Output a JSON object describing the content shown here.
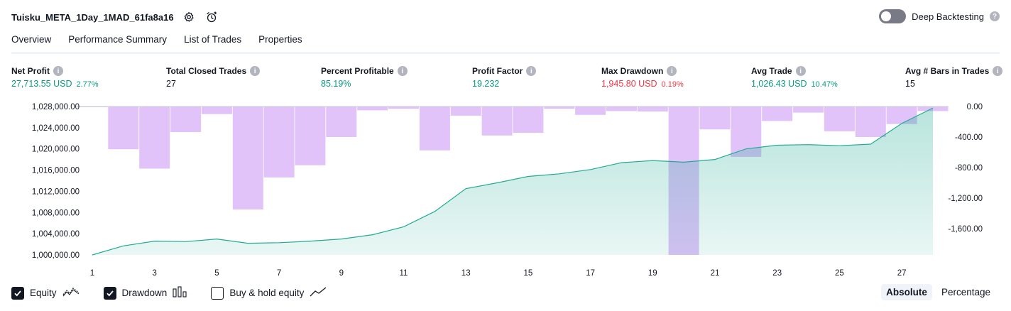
{
  "header": {
    "title": "Tuisku_META_1Day_1MAD_61fa8a16",
    "settings_icon": "gear-icon",
    "alert_icon": "add-alert-clock-icon",
    "deep_backtesting_label": "Deep Backtesting",
    "deep_backtesting_enabled": false
  },
  "tabs": [
    {
      "label": "Overview",
      "active": true
    },
    {
      "label": "Performance Summary",
      "active": false
    },
    {
      "label": "List of Trades",
      "active": false
    },
    {
      "label": "Properties",
      "active": false
    }
  ],
  "metrics": [
    {
      "label": "Net Profit",
      "value": "27,713.55 USD",
      "pct": "2.77%",
      "tone": "pos"
    },
    {
      "label": "Total Closed Trades",
      "value": "27",
      "pct": "",
      "tone": "neutral"
    },
    {
      "label": "Percent Profitable",
      "value": "85.19%",
      "pct": "",
      "tone": "pos"
    },
    {
      "label": "Profit Factor",
      "value": "19.232",
      "pct": "",
      "tone": "pos"
    },
    {
      "label": "Max Drawdown",
      "value": "1,945.80 USD",
      "pct": "0.19%",
      "tone": "neg"
    },
    {
      "label": "Avg Trade",
      "value": "1,026.43 USD",
      "pct": "10.47%",
      "tone": "pos"
    },
    {
      "label": "Avg # Bars in Trades",
      "value": "15",
      "pct": "",
      "tone": "neutral"
    }
  ],
  "chart_data": {
    "type": "area",
    "x": [
      1,
      2,
      3,
      4,
      5,
      6,
      7,
      8,
      9,
      10,
      11,
      12,
      13,
      14,
      15,
      16,
      17,
      18,
      19,
      20,
      21,
      22,
      23,
      24,
      25,
      26,
      27,
      28
    ],
    "x_ticks": [
      "1",
      "3",
      "5",
      "7",
      "9",
      "11",
      "13",
      "15",
      "17",
      "19",
      "21",
      "23",
      "25",
      "27"
    ],
    "y_left_ticks": [
      "1,028,000.00",
      "1,024,000.00",
      "1,020,000.00",
      "1,016,000.00",
      "1,012,000.00",
      "1,008,000.00",
      "1,004,000.00",
      "1,000,000.00"
    ],
    "y_left_range": [
      1000000,
      1028000
    ],
    "y_right_ticks": [
      "0.00",
      "-400.00",
      "-800.00",
      "-1,200.00",
      "-1,600.00"
    ],
    "y_right_range": [
      -1945.8,
      0
    ],
    "series": [
      {
        "name": "Equity",
        "kind": "line-area",
        "axis": "left",
        "color": "#22ab94",
        "values": [
          1000000,
          1001700,
          1002600,
          1002500,
          1003000,
          1002200,
          1002300,
          1002600,
          1003000,
          1003800,
          1005300,
          1008200,
          1012500,
          1013600,
          1014800,
          1015300,
          1016100,
          1017400,
          1017800,
          1017500,
          1018000,
          1020000,
          1020700,
          1020800,
          1020600,
          1020900,
          1024800,
          1027713.55
        ]
      },
      {
        "name": "Drawdown",
        "kind": "bar",
        "axis": "right",
        "color": "#d1a3f7",
        "values": [
          -5,
          -560,
          -815,
          -335,
          -100,
          -1350,
          -930,
          -770,
          -400,
          -50,
          -30,
          -575,
          -120,
          -380,
          -345,
          -30,
          -110,
          -60,
          -65,
          -1945.8,
          -300,
          -660,
          -190,
          -80,
          -325,
          -400,
          -230,
          -60
        ]
      }
    ]
  },
  "legend": [
    {
      "label": "Equity",
      "checked": true,
      "icon": "equity-line-icon"
    },
    {
      "label": "Drawdown",
      "checked": true,
      "icon": "drawdown-bars-icon"
    },
    {
      "label": "Buy & hold equity",
      "checked": false,
      "icon": "buy-hold-line-icon"
    }
  ],
  "view_switch": {
    "absolute_label": "Absolute",
    "percentage_label": "Percentage",
    "active": "Absolute"
  },
  "colors": {
    "positive": "#089981",
    "negative": "#f23645",
    "equity_line": "#22ab94",
    "drawdown_bar": "#d1a3f7"
  }
}
